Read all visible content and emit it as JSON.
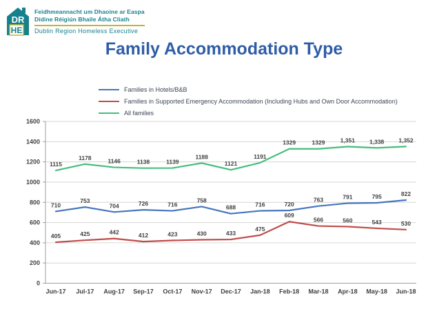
{
  "logo": {
    "acronym_top": "DR",
    "acronym_bottom": "HE",
    "line1": "Feidhmeannacht um Dhaoine ar Easpa",
    "line2": "Dídine Réigiún Bhaile Átha Cliath",
    "line3": "Dublin Region Homeless Executive",
    "teal": "#16808D",
    "gold": "#C3B52D"
  },
  "title": {
    "text": "Family Accommodation Type",
    "color": "#2E5DA6"
  },
  "legend": [
    {
      "label": "Families in Hotels/B&B",
      "color": "#4575BC"
    },
    {
      "label": "Families in Supported Emergency Accommodation (Including Hubs and Own Door Accommodation)",
      "color": "#BE4B48"
    },
    {
      "label": "All families",
      "color": "#43BE7C"
    }
  ],
  "chart_data": {
    "type": "line",
    "title": "Family Accommodation Type",
    "categories": [
      "Jun-17",
      "Jul-17",
      "Aug-17",
      "Sep-17",
      "Oct-17",
      "Nov-17",
      "Dec-17",
      "Jan-18",
      "Feb-18",
      "Mar-18",
      "Apr-18",
      "May-18",
      "Jun-18"
    ],
    "series": [
      {
        "name": "Families in Hotels/B&B",
        "color": "#4575BC",
        "values": [
          710,
          753,
          704,
          726,
          716,
          758,
          688,
          716,
          720,
          763,
          791,
          795,
          822
        ],
        "labels": [
          "710",
          "753",
          "704",
          "726",
          "716",
          "758",
          "688",
          "716",
          "720",
          "763",
          "791",
          "795",
          "822"
        ]
      },
      {
        "name": "Families in Supported Emergency Accommodation (Including Hubs and Own Door Accommodation)",
        "color": "#BE4B48",
        "values": [
          405,
          425,
          442,
          412,
          423,
          430,
          433,
          475,
          609,
          566,
          560,
          543,
          530
        ],
        "labels": [
          "405",
          "425",
          "442",
          "412",
          "423",
          "430",
          "433",
          "475",
          "609",
          "566",
          "560",
          "543",
          "530"
        ]
      },
      {
        "name": "All families",
        "color": "#43BE7C",
        "values": [
          1115,
          1178,
          1146,
          1138,
          1139,
          1188,
          1121,
          1191,
          1329,
          1329,
          1351,
          1338,
          1352
        ],
        "labels": [
          "1115",
          "1178",
          "1146",
          "1138",
          "1139",
          "1188",
          "1121",
          "1191",
          "1329",
          "1329",
          "1,351",
          "1,338",
          "1,352"
        ]
      }
    ],
    "xlabel": "",
    "ylabel": "",
    "ylim": [
      0,
      1600
    ],
    "ytick_step": 200,
    "yticks": [
      0,
      200,
      400,
      600,
      800,
      1000,
      1200,
      1400,
      1600
    ],
    "grid": true,
    "legend_position": "top-left"
  },
  "colors": {
    "grid": "#D6D6D6",
    "axis": "#9E9E9E",
    "axis_text": "#3F3F3F",
    "label_text": "#3F3F3F"
  }
}
